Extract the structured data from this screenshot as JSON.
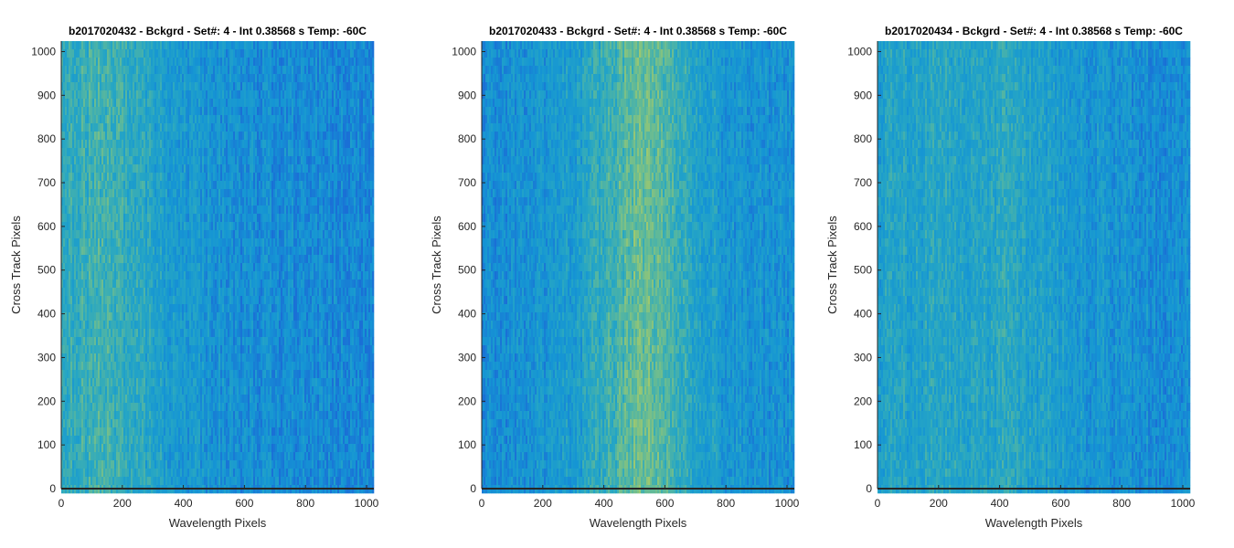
{
  "chart_data": [
    {
      "type": "heatmap",
      "title": "b2017020432 - Bckgrd - Set#: 4 - Int 0.38568 s Temp: -60C",
      "xlabel": "Wavelength Pixels",
      "ylabel": "Cross Track Pixels",
      "xlim": [
        0,
        1024
      ],
      "ylim": [
        0,
        1024
      ],
      "xticks": [
        "0",
        "200",
        "400",
        "600",
        "800",
        "1000"
      ],
      "yticks": [
        "0",
        "100",
        "200",
        "300",
        "400",
        "500",
        "600",
        "700",
        "800",
        "900",
        "1000"
      ],
      "colormap": [
        "#1a6fd6",
        "#1595d4",
        "#26a6c4",
        "#5bb89c",
        "#9cc870"
      ],
      "column_profile": {
        "x": [
          0,
          100,
          150,
          200,
          300,
          400,
          500,
          600,
          700,
          800,
          900,
          1024
        ],
        "level": [
          0.52,
          0.62,
          0.64,
          0.56,
          0.42,
          0.34,
          0.28,
          0.22,
          0.2,
          0.2,
          0.18,
          0.18
        ]
      }
    },
    {
      "type": "heatmap",
      "title": "b2017020433 - Bckgrd - Set#: 4 - Int 0.38568 s Temp: -60C",
      "xlabel": "Wavelength Pixels",
      "ylabel": "Cross Track Pixels",
      "xlim": [
        0,
        1024
      ],
      "ylim": [
        0,
        1024
      ],
      "xticks": [
        "0",
        "200",
        "400",
        "600",
        "800",
        "1000"
      ],
      "yticks": [
        "0",
        "100",
        "200",
        "300",
        "400",
        "500",
        "600",
        "700",
        "800",
        "900",
        "1000"
      ],
      "colormap": [
        "#1a6fd6",
        "#1595d4",
        "#26a6c4",
        "#5bb89c",
        "#9cc870"
      ],
      "column_profile": {
        "x": [
          0,
          100,
          200,
          300,
          400,
          450,
          500,
          550,
          600,
          650,
          700,
          800,
          900,
          1024
        ],
        "level": [
          0.22,
          0.24,
          0.28,
          0.36,
          0.55,
          0.68,
          0.78,
          0.8,
          0.74,
          0.6,
          0.45,
          0.32,
          0.26,
          0.24
        ]
      }
    },
    {
      "type": "heatmap",
      "title": "b2017020434 - Bckgrd - Set#: 4 - Int 0.38568 s Temp: -60C",
      "xlabel": "Wavelength Pixels",
      "ylabel": "Cross Track Pixels",
      "xlim": [
        0,
        1024
      ],
      "ylim": [
        0,
        1024
      ],
      "xticks": [
        "0",
        "200",
        "400",
        "600",
        "800",
        "1000"
      ],
      "yticks": [
        "0",
        "100",
        "200",
        "300",
        "400",
        "500",
        "600",
        "700",
        "800",
        "900",
        "1000"
      ],
      "colormap": [
        "#1a6fd6",
        "#1595d4",
        "#26a6c4",
        "#5bb89c",
        "#9cc870"
      ],
      "column_profile": {
        "x": [
          0,
          100,
          200,
          300,
          400,
          500,
          600,
          700,
          800,
          900,
          1024
        ],
        "level": [
          0.42,
          0.44,
          0.44,
          0.46,
          0.48,
          0.44,
          0.36,
          0.3,
          0.26,
          0.24,
          0.22
        ]
      }
    }
  ]
}
